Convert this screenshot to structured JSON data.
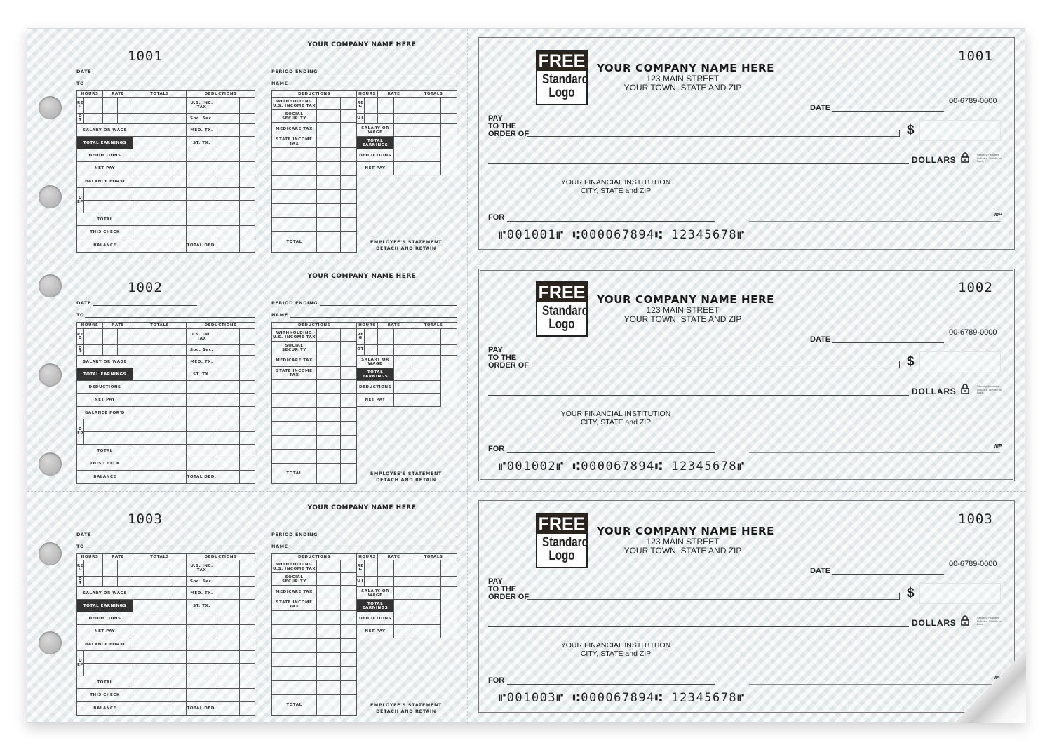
{
  "company": {
    "name": "YOUR COMPANY NAME HERE",
    "street": "123 MAIN STREET",
    "city": "YOUR TOWN, STATE AND ZIP"
  },
  "logo": {
    "line1": "FREE",
    "line2": "Standard",
    "line3": "Logo"
  },
  "bank": {
    "name": "YOUR FINANCIAL INSTITUTION",
    "city": "CITY, STATE and ZIP"
  },
  "check_labels": {
    "date": "DATE",
    "pay": "PAY",
    "to_the": "TO THE",
    "order_of": "ORDER OF",
    "dollar_sign": "$",
    "dollars": "DOLLARS",
    "security": "Security Features Included. Details on Back.",
    "for": "FOR",
    "mp": "MP",
    "routing_fraction": "00-6789-0000"
  },
  "checks": [
    {
      "number": "1001",
      "micr": "⑈001001⑈ ⑆000067894⑆ 12345678⑈"
    },
    {
      "number": "1002",
      "micr": "⑈001002⑈ ⑆000067894⑆ 12345678⑈"
    },
    {
      "number": "1003",
      "micr": "⑈001003⑈ ⑆000067894⑆ 12345678⑈"
    }
  ],
  "stub": {
    "date": "DATE",
    "to": "TO",
    "period_ending": "PERIOD ENDING",
    "name": "NAME",
    "statement_1": "EMPLOYEE'S STATEMENT",
    "statement_2": "DETACH AND RETAIN",
    "labels": {
      "hours": "HOURS",
      "rate": "RATE",
      "totals": "TOTALS",
      "deductions_h": "DEDUCTIONS",
      "reg": "REG",
      "ot": "OT",
      "us_inc_tax": "U.S. INC. TAX",
      "soc_sec": "Soc. Sec.",
      "med_tx": "MED. TX.",
      "st_tx": "ST. TX.",
      "salary": "SALARY OR WAGE",
      "total_earnings": "TOTAL EARNINGS",
      "deductions": "DEDUCTIONS",
      "net_pay": "NET PAY",
      "balance_ford": "BALANCE FOR'D",
      "dep": "DEP",
      "total": "TOTAL",
      "this_check": "THIS CHECK",
      "balance": "BALANCE",
      "total_ded": "TOTAL DED.",
      "withholding": "WITHHOLDING U.S. INCOME TAX",
      "social_security": "SOCIAL SECURITY",
      "medicare_tax": "MEDICARE TAX",
      "state_income_tax": "STATE INCOME TAX"
    }
  },
  "colors": {
    "paper": "#eef2f2",
    "ink": "#222222",
    "dark_cell": "#333333"
  }
}
